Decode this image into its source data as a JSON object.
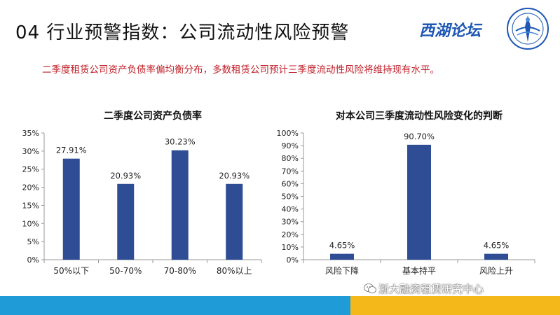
{
  "header": {
    "title": "04 行业预警指数：公司流动性风险预警",
    "logo_text": "西湖论坛",
    "emblem_icon": "forum-emblem-icon"
  },
  "subtitle": "二季度租赁公司资产负债率偏均衡分布，多数租赁公司预计三季度流动性风险将维持现有水平。",
  "footer": {
    "watermark": "浙大融资租赁研究中心",
    "watermark_icon": "wechat-icon",
    "colors": {
      "blue": "#1f9cd8",
      "gold": "#f5b81a"
    }
  },
  "chart_data": [
    {
      "type": "bar",
      "title": "二季度公司资产负债率",
      "categories": [
        "50%以下",
        "50-70%",
        "70-80%",
        "80%以上"
      ],
      "values": [
        27.91,
        20.93,
        30.23,
        20.93
      ],
      "data_labels": [
        "27.91%",
        "20.93%",
        "30.23%",
        "20.93%"
      ],
      "ylim": [
        0,
        35
      ],
      "yticks": [
        0,
        5,
        10,
        15,
        20,
        25,
        30,
        35
      ],
      "ytick_labels": [
        "0%",
        "5%",
        "10%",
        "15%",
        "20%",
        "25%",
        "30%",
        "35%"
      ],
      "xlabel": "",
      "ylabel": "",
      "grid": false,
      "color": "#2e4d94"
    },
    {
      "type": "bar",
      "title": "对本公司三季度流动性风险变化的判断",
      "categories": [
        "风险下降",
        "基本持平",
        "风险上升"
      ],
      "values": [
        4.65,
        90.7,
        4.65
      ],
      "data_labels": [
        "4.65%",
        "90.70%",
        "4.65%"
      ],
      "ylim": [
        0,
        100
      ],
      "yticks": [
        0,
        10,
        20,
        30,
        40,
        50,
        60,
        70,
        80,
        90,
        100
      ],
      "ytick_labels": [
        "0%",
        "10%",
        "20%",
        "30%",
        "40%",
        "50%",
        "60%",
        "70%",
        "80%",
        "90%",
        "100%"
      ],
      "xlabel": "",
      "ylabel": "",
      "grid": false,
      "color": "#2e4d94"
    }
  ]
}
